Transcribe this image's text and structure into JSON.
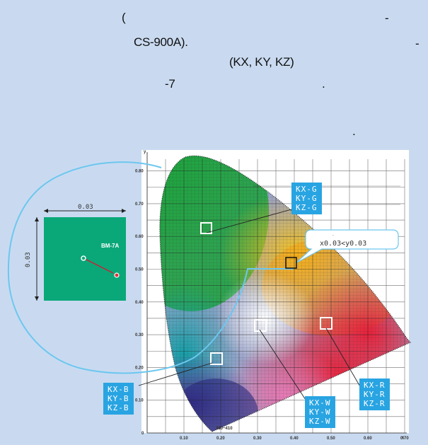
{
  "intro": {
    "paren": "(",
    "dash1": "-",
    "model": "CS-900A).",
    "dash2": "-",
    "coords": "(KX, KY, KZ)",
    "minus7": "-7",
    "dot1": ".",
    "dot2": "."
  },
  "inset": {
    "width_label": "0.03",
    "height_label": "0.03",
    "device": "BM-7A"
  },
  "callout": {
    "dot": ".",
    "tolerance": "x0.03<y0.03"
  },
  "labels": {
    "green": [
      "KX-G",
      "KY-G",
      "KZ-G"
    ],
    "blue": [
      "KX-B",
      "KY-B",
      "KZ-B"
    ],
    "white": [
      "KX-W",
      "KY-W",
      "KZ-W"
    ],
    "red": [
      "KX-R",
      "KY-R",
      "KZ-R"
    ]
  },
  "chart_data": {
    "type": "diagram",
    "x_ticks": [
      "0.10",
      "0.20",
      "0.30",
      "0.40",
      "0.50",
      "0.60",
      "0.70"
    ],
    "y_ticks": [
      "0.80",
      "0.70",
      "0.60",
      "0.50",
      "0.40",
      "0.30",
      "0.20",
      "0.10",
      "0"
    ],
    "x_axis_label": "x",
    "y_axis_label": "y",
    "locus_label": "380~410",
    "measurement_points": [
      {
        "name": "G",
        "x": 0.14,
        "y": 0.59
      },
      {
        "name": "Y",
        "x": 0.41,
        "y": 0.5
      },
      {
        "name": "W",
        "x": 0.31,
        "y": 0.32
      },
      {
        "name": "R",
        "x": 0.53,
        "y": 0.32
      },
      {
        "name": "B",
        "x": 0.17,
        "y": 0.21
      }
    ]
  },
  "colors": {
    "background": "#c9daf0",
    "label_box": "#29a4e2",
    "inset_green": "#0aa879",
    "lens_circle": "#6cc7ef"
  }
}
